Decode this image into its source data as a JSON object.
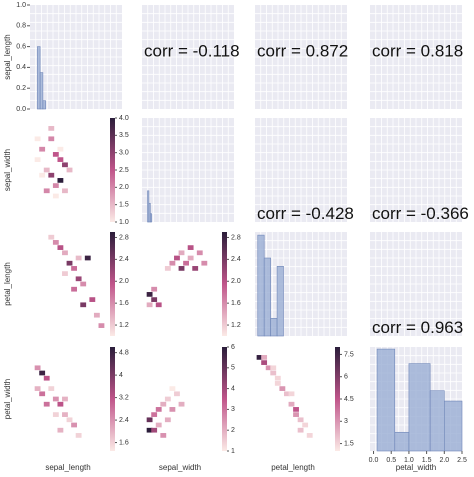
{
  "chart_data": {
    "type": "pairgrid",
    "variables": [
      "sepal_length",
      "sepal_width",
      "petal_length",
      "petal_width"
    ],
    "diagonal": [
      {
        "type": "histogram",
        "xlim": [
          0,
          10
        ],
        "ylim": [
          0,
          1
        ],
        "yticks": [
          {
            "value": 0,
            "label": "0.0"
          },
          {
            "value": 0.2,
            "label": "0.2"
          },
          {
            "value": 0.4,
            "label": "0.4"
          },
          {
            "value": 0.6,
            "label": "0.6"
          },
          {
            "value": 0.8,
            "label": "0.8"
          },
          {
            "value": 1,
            "label": "1.0"
          }
        ],
        "bins": [
          0.8,
          1.1,
          1.4,
          1.7
        ],
        "counts": [
          0.6,
          0.35,
          0.08
        ],
        "color": "#9aaed3"
      },
      {
        "type": "histogram",
        "xlim": [
          0,
          10
        ],
        "ylim": [
          0,
          1
        ],
        "bins": [
          0.6,
          0.75,
          0.9,
          1.05
        ],
        "counts": [
          0.3,
          0.18,
          0.08
        ],
        "color": "#9aaed3"
      },
      {
        "type": "histogram",
        "xlim": [
          0,
          10
        ],
        "ylim": [
          0,
          1
        ],
        "bins": [
          0.3,
          1.0,
          1.7,
          2.4,
          3.1
        ],
        "counts": [
          0.97,
          0.75,
          0.17,
          0.67
        ],
        "color": "#9aaed3"
      },
      {
        "type": "histogram",
        "xlim": [
          -0.1,
          2.5
        ],
        "ylim": [
          0,
          50
        ],
        "xticks": [
          {
            "value": 0,
            "label": "0.0"
          },
          {
            "value": 0.5,
            "label": "0.5"
          },
          {
            "value": 1,
            "label": "1.0"
          },
          {
            "value": 1.5,
            "label": "1.5"
          },
          {
            "value": 2,
            "label": "2.0"
          },
          {
            "value": 2.5,
            "label": "2.5"
          }
        ],
        "bins": [
          0.1,
          0.6,
          1.0,
          1.6,
          2.0,
          2.5
        ],
        "counts": [
          49,
          9,
          42,
          29,
          24
        ],
        "color": "#9aaed3"
      }
    ],
    "lower": [
      {
        "type": "heatmap",
        "clim": [
          1,
          4
        ],
        "cticks": [
          {
            "value": 1,
            "label": "1.0"
          },
          {
            "value": 1.5,
            "label": "1.5"
          },
          {
            "value": 2,
            "label": "2.0"
          },
          {
            "value": 2.5,
            "label": "2.5"
          },
          {
            "value": 3,
            "label": "3.0"
          },
          {
            "value": 3.5,
            "label": "3.5"
          },
          {
            "value": 4,
            "label": "4.0"
          }
        ],
        "x": [
          1,
          1.6,
          2.2,
          2.8,
          3.4,
          4,
          4.6,
          1.6,
          2.8,
          3.4,
          4,
          5.2,
          2.2,
          3.4,
          4,
          4.6,
          2.8,
          1
        ],
        "y": [
          6,
          7,
          5,
          8,
          6.5,
          4,
          5.5,
          4.5,
          9,
          3.5,
          7,
          5,
          3,
          2.5,
          6,
          3,
          4.5,
          8
        ],
        "values": [
          1,
          2,
          1.5,
          2,
          2.5,
          4,
          3,
          1,
          1.5,
          2,
          1,
          1.5,
          2,
          1,
          2.5,
          1.5,
          3,
          1
        ]
      },
      {
        "type": "heatmap",
        "clim": [
          1,
          2.9
        ],
        "cticks": [
          {
            "value": 1.2,
            "label": "1.2"
          },
          {
            "value": 1.6,
            "label": "1.6"
          },
          {
            "value": 2,
            "label": "2.0"
          },
          {
            "value": 2.4,
            "label": "2.4"
          },
          {
            "value": 2.8,
            "label": "2.8"
          }
        ],
        "x": [
          2.8,
          3.4,
          4,
          4.6,
          5.2,
          5.8,
          6.4,
          7,
          7.6,
          8.2,
          8.8,
          4.6,
          5.8,
          7,
          9.4,
          6.4
        ],
        "y": [
          9.5,
          9,
          8.5,
          8,
          7,
          6.5,
          5.5,
          5,
          7.5,
          3.5,
          2,
          6,
          4.5,
          3,
          1,
          7.5
        ],
        "values": [
          1.2,
          1.6,
          2,
          1.4,
          2.4,
          1.8,
          2.2,
          1.6,
          2.8,
          2,
          1.4,
          1.2,
          1.8,
          2.4,
          1.6,
          1.3
        ]
      },
      {
        "type": "heatmap",
        "clim": [
          1,
          2.9
        ],
        "cticks": [
          {
            "value": 1.2,
            "label": "1.2"
          },
          {
            "value": 1.6,
            "label": "1.6"
          },
          {
            "value": 2,
            "label": "2.0"
          },
          {
            "value": 2.4,
            "label": "2.4"
          },
          {
            "value": 2.8,
            "label": "2.8"
          }
        ],
        "x": [
          1,
          1.6,
          1.6,
          2.2,
          1,
          4,
          4.6,
          5.2,
          5.8,
          6.4,
          7,
          7.6,
          3.4,
          5.2,
          6.4,
          8.2
        ],
        "y": [
          4,
          3.5,
          4.5,
          3,
          3,
          7,
          7.5,
          6.5,
          7,
          7.5,
          6.5,
          8,
          6.5,
          8,
          8.5,
          7
        ],
        "values": [
          2.8,
          2.4,
          1.6,
          2,
          1.4,
          1.6,
          2,
          2.4,
          1.8,
          1.4,
          2.2,
          1.6,
          1.2,
          1.4,
          2,
          1.6
        ]
      },
      {
        "type": "heatmap",
        "clim": [
          1.3,
          5
        ],
        "cticks": [
          1.6,
          2.4,
          3.2,
          4.0,
          4.8
        ],
        "x": [
          1,
          1.6,
          2.2,
          1,
          1.6,
          2.8,
          3.4,
          4,
          4.6,
          5.2,
          5.8,
          3.4,
          4.6,
          2.2,
          6.4,
          4
        ],
        "y": [
          8,
          7.5,
          7,
          6,
          5.5,
          6,
          5,
          4.5,
          3.5,
          3,
          2.5,
          3.5,
          5,
          4.5,
          1.5,
          2
        ],
        "values": [
          2.4,
          4.8,
          3.2,
          2,
          2.8,
          1.6,
          2.4,
          3.2,
          2,
          1.6,
          2.4,
          1.6,
          2,
          2.8,
          1.6,
          2
        ]
      },
      {
        "type": "heatmap",
        "clim": [
          1,
          6
        ],
        "cticks": [
          1,
          2,
          3,
          4,
          5,
          6
        ],
        "x": [
          1,
          1.6,
          2.2,
          1,
          2.8,
          3.4,
          4,
          4.6,
          5.2,
          2.2,
          3.4,
          4,
          1.6,
          2.8
        ],
        "y": [
          3,
          3.5,
          2.5,
          2,
          4.5,
          5,
          4,
          5.5,
          4.5,
          4,
          3,
          6,
          2,
          1.5
        ],
        "values": [
          5,
          3,
          2,
          6,
          2,
          1.5,
          2.5,
          1.5,
          2,
          3,
          2,
          1,
          4,
          2.5
        ]
      },
      {
        "type": "heatmap",
        "clim": [
          1,
          8
        ],
        "cticks": [
          1.5,
          3.0,
          4.5,
          6.0,
          7.5
        ],
        "x": [
          0.6,
          1.2,
          1.8,
          1.2,
          2.4,
          3,
          3.6,
          4.2,
          4.8,
          5.4,
          6,
          6.6,
          3,
          4.8,
          5.4,
          2.4,
          6,
          7.2
        ],
        "y": [
          9,
          8.5,
          8,
          9,
          7.5,
          6.5,
          6,
          5.5,
          4.5,
          4,
          3,
          2.5,
          7,
          5.5,
          3.5,
          8,
          2,
          1.5
        ],
        "values": [
          7.8,
          5,
          3,
          2.5,
          2,
          1.5,
          3,
          2,
          2.5,
          4.5,
          2,
          1.5,
          1.5,
          1.5,
          3,
          1.5,
          2,
          1.5
        ]
      }
    ],
    "upper": [
      {
        "type": "annotation",
        "text": "corr = -0.118"
      },
      {
        "type": "annotation",
        "text": "corr = 0.872"
      },
      {
        "type": "annotation",
        "text": "corr = 0.818"
      },
      {
        "type": "annotation",
        "text": "corr = -0.428"
      },
      {
        "type": "annotation",
        "text": "corr = -0.366"
      },
      {
        "type": "annotation",
        "text": "corr = 0.963"
      }
    ]
  }
}
